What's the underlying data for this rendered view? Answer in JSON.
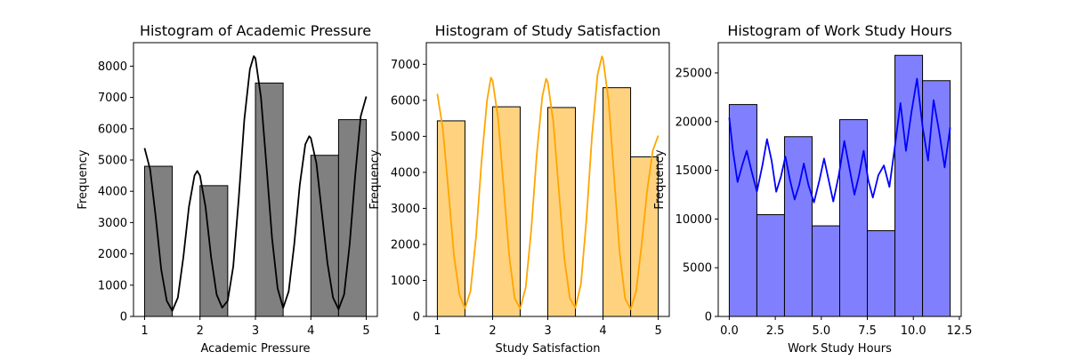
{
  "chart_data": [
    {
      "type": "bar",
      "title": "Histogram of Academic Pressure",
      "xlabel": "Academic Pressure",
      "ylabel": "Frequency",
      "xlim": [
        0.8,
        5.2
      ],
      "ylim": [
        0,
        8750
      ],
      "xticks": [
        1,
        2,
        3,
        4,
        5
      ],
      "xtick_labels": [
        "1",
        "2",
        "3",
        "4",
        "5"
      ],
      "yticks": [
        0,
        1000,
        2000,
        3000,
        4000,
        5000,
        6000,
        7000,
        8000
      ],
      "ytick_labels": [
        "0",
        "1000",
        "2000",
        "3000",
        "4000",
        "5000",
        "6000",
        "7000",
        "8000"
      ],
      "bins": [
        [
          1.0,
          1.5
        ],
        [
          2.0,
          2.5
        ],
        [
          3.0,
          3.5
        ],
        [
          4.0,
          4.5
        ],
        [
          4.5,
          5.0
        ]
      ],
      "values": [
        4800,
        4180,
        7460,
        5150,
        6290
      ],
      "bar_color": "#808080",
      "kde_color": "#000000",
      "kde": [
        [
          1.0,
          5380
        ],
        [
          1.1,
          4700
        ],
        [
          1.2,
          3200
        ],
        [
          1.3,
          1500
        ],
        [
          1.4,
          500
        ],
        [
          1.5,
          180
        ],
        [
          1.6,
          600
        ],
        [
          1.7,
          1900
        ],
        [
          1.8,
          3500
        ],
        [
          1.9,
          4500
        ],
        [
          1.95,
          4650
        ],
        [
          2.0,
          4500
        ],
        [
          2.1,
          3500
        ],
        [
          2.2,
          1900
        ],
        [
          2.3,
          700
        ],
        [
          2.4,
          280
        ],
        [
          2.5,
          500
        ],
        [
          2.6,
          1600
        ],
        [
          2.7,
          3800
        ],
        [
          2.8,
          6300
        ],
        [
          2.9,
          7900
        ],
        [
          2.97,
          8320
        ],
        [
          3.0,
          8250
        ],
        [
          3.1,
          7000
        ],
        [
          3.2,
          4800
        ],
        [
          3.3,
          2500
        ],
        [
          3.4,
          900
        ],
        [
          3.5,
          270
        ],
        [
          3.6,
          800
        ],
        [
          3.7,
          2300
        ],
        [
          3.8,
          4200
        ],
        [
          3.9,
          5500
        ],
        [
          3.97,
          5760
        ],
        [
          4.0,
          5700
        ],
        [
          4.1,
          4900
        ],
        [
          4.2,
          3300
        ],
        [
          4.3,
          1700
        ],
        [
          4.4,
          600
        ],
        [
          4.5,
          230
        ],
        [
          4.6,
          700
        ],
        [
          4.7,
          2300
        ],
        [
          4.8,
          4500
        ],
        [
          4.9,
          6400
        ],
        [
          5.0,
          7030
        ]
      ]
    },
    {
      "type": "bar",
      "title": "Histogram of Study Satisfaction",
      "xlabel": "Study Satisfaction",
      "ylabel": "Frequency",
      "xlim": [
        0.8,
        5.2
      ],
      "ylim": [
        0,
        7600
      ],
      "xticks": [
        1,
        2,
        3,
        4,
        5
      ],
      "xtick_labels": [
        "1",
        "2",
        "3",
        "4",
        "5"
      ],
      "yticks": [
        0,
        1000,
        2000,
        3000,
        4000,
        5000,
        6000,
        7000
      ],
      "ytick_labels": [
        "0",
        "1000",
        "2000",
        "3000",
        "4000",
        "5000",
        "6000",
        "7000"
      ],
      "bins": [
        [
          1.0,
          1.5
        ],
        [
          2.0,
          2.5
        ],
        [
          3.0,
          3.5
        ],
        [
          4.0,
          4.5
        ],
        [
          4.5,
          5.0
        ]
      ],
      "values": [
        5430,
        5820,
        5800,
        6350,
        4430
      ],
      "bar_color": "#ffd27f",
      "kde_color": "#ffa500",
      "kde": [
        [
          1.0,
          6180
        ],
        [
          1.1,
          5200
        ],
        [
          1.2,
          3500
        ],
        [
          1.3,
          1700
        ],
        [
          1.4,
          600
        ],
        [
          1.5,
          230
        ],
        [
          1.6,
          700
        ],
        [
          1.7,
          2200
        ],
        [
          1.8,
          4300
        ],
        [
          1.9,
          6000
        ],
        [
          1.97,
          6630
        ],
        [
          2.0,
          6550
        ],
        [
          2.1,
          5500
        ],
        [
          2.2,
          3600
        ],
        [
          2.3,
          1700
        ],
        [
          2.4,
          500
        ],
        [
          2.5,
          220
        ],
        [
          2.6,
          800
        ],
        [
          2.7,
          2400
        ],
        [
          2.8,
          4500
        ],
        [
          2.9,
          6100
        ],
        [
          2.97,
          6600
        ],
        [
          3.0,
          6500
        ],
        [
          3.1,
          5400
        ],
        [
          3.2,
          3500
        ],
        [
          3.3,
          1600
        ],
        [
          3.4,
          500
        ],
        [
          3.5,
          240
        ],
        [
          3.6,
          900
        ],
        [
          3.7,
          2700
        ],
        [
          3.8,
          5000
        ],
        [
          3.9,
          6700
        ],
        [
          3.98,
          7220
        ],
        [
          4.0,
          7150
        ],
        [
          4.1,
          6000
        ],
        [
          4.2,
          3900
        ],
        [
          4.3,
          1800
        ],
        [
          4.4,
          500
        ],
        [
          4.5,
          200
        ],
        [
          4.6,
          700
        ],
        [
          4.7,
          2000
        ],
        [
          4.8,
          3500
        ],
        [
          4.9,
          4600
        ],
        [
          5.0,
          5020
        ]
      ]
    },
    {
      "type": "bar",
      "title": "Histogram of Work Study Hours",
      "xlabel": "Work Study Hours",
      "ylabel": "Frequency",
      "xlim": [
        -0.6,
        12.6
      ],
      "ylim": [
        0,
        28100
      ],
      "xticks": [
        0,
        2.5,
        5,
        7.5,
        10,
        12.5
      ],
      "xtick_labels": [
        "0.0",
        "2.5",
        "5.0",
        "7.5",
        "10.0",
        "12.5"
      ],
      "yticks": [
        0,
        5000,
        10000,
        15000,
        20000,
        25000
      ],
      "ytick_labels": [
        "0",
        "5000",
        "10000",
        "15000",
        "20000",
        "25000"
      ],
      "bins": [
        [
          0,
          1.5
        ],
        [
          1.5,
          3
        ],
        [
          3,
          4.5
        ],
        [
          4.5,
          6
        ],
        [
          6,
          7.5
        ],
        [
          7.5,
          9
        ],
        [
          9,
          10.5
        ],
        [
          10.5,
          12
        ]
      ],
      "values": [
        21750,
        10450,
        18450,
        9300,
        20200,
        8800,
        26800,
        24200
      ],
      "bar_color": "#8080ff",
      "kde_color": "#0000ff",
      "kde": [
        [
          0.0,
          20400
        ],
        [
          0.2,
          17000
        ],
        [
          0.45,
          13800
        ],
        [
          0.7,
          15500
        ],
        [
          0.95,
          17000
        ],
        [
          1.2,
          15000
        ],
        [
          1.5,
          12800
        ],
        [
          1.8,
          15500
        ],
        [
          2.05,
          18200
        ],
        [
          2.3,
          16000
        ],
        [
          2.55,
          12800
        ],
        [
          2.8,
          14300
        ],
        [
          3.05,
          16400
        ],
        [
          3.3,
          14000
        ],
        [
          3.55,
          12000
        ],
        [
          3.8,
          13500
        ],
        [
          4.05,
          15700
        ],
        [
          4.3,
          13500
        ],
        [
          4.6,
          11700
        ],
        [
          4.9,
          14000
        ],
        [
          5.15,
          16200
        ],
        [
          5.4,
          14000
        ],
        [
          5.65,
          11800
        ],
        [
          5.95,
          14500
        ],
        [
          6.25,
          18000
        ],
        [
          6.55,
          15000
        ],
        [
          6.8,
          12500
        ],
        [
          7.05,
          14500
        ],
        [
          7.3,
          17000
        ],
        [
          7.55,
          14000
        ],
        [
          7.8,
          12200
        ],
        [
          8.1,
          14500
        ],
        [
          8.4,
          15500
        ],
        [
          8.7,
          13300
        ],
        [
          9.0,
          17500
        ],
        [
          9.3,
          21900
        ],
        [
          9.6,
          17000
        ],
        [
          9.9,
          21000
        ],
        [
          10.2,
          24400
        ],
        [
          10.5,
          19500
        ],
        [
          10.8,
          16000
        ],
        [
          11.1,
          22200
        ],
        [
          11.4,
          19000
        ],
        [
          11.7,
          15300
        ],
        [
          12.0,
          19400
        ]
      ]
    }
  ]
}
